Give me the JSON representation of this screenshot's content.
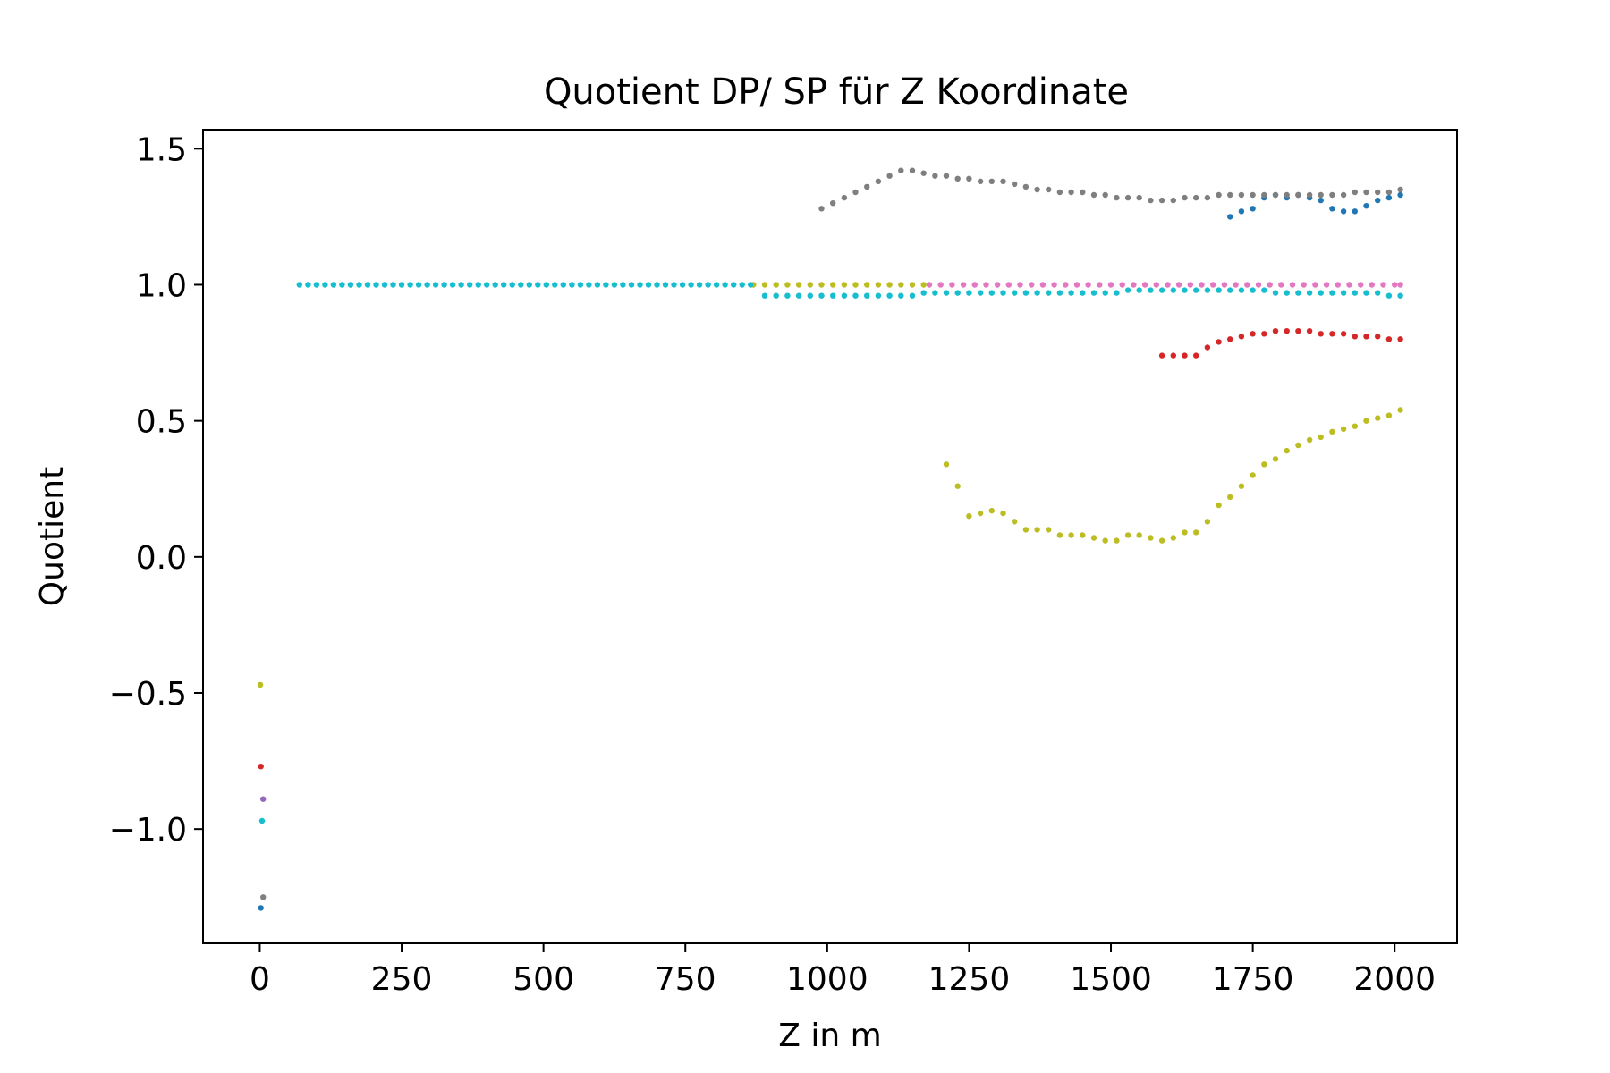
{
  "chart_data": {
    "type": "scatter",
    "title": "Quotient DP/ SP für Z Koordinate",
    "xlabel": "Z in m",
    "ylabel": "Quotient",
    "xlim": [
      -100,
      2110
    ],
    "ylim": [
      -1.42,
      1.57
    ],
    "xticks": [
      0,
      250,
      500,
      750,
      1000,
      1250,
      1500,
      1750,
      2000
    ],
    "xtick_labels": [
      "0",
      "250",
      "500",
      "750",
      "1000",
      "1250",
      "1500",
      "1750",
      "2000"
    ],
    "yticks": [
      -1.0,
      -0.5,
      0.0,
      0.5,
      1.0,
      1.5
    ],
    "ytick_labels": [
      "−1.0",
      "−0.5",
      "0.0",
      "0.5",
      "1.0",
      "1.5"
    ],
    "grid": false,
    "series": [
      {
        "color": "#1f77b4",
        "points": [
          [
            2,
            -1.29
          ],
          [
            1710,
            1.25
          ],
          [
            1730,
            1.27
          ],
          [
            1750,
            1.28
          ],
          [
            1770,
            1.32
          ],
          [
            1790,
            1.33
          ],
          [
            1810,
            1.32
          ],
          [
            1830,
            1.33
          ],
          [
            1850,
            1.32
          ],
          [
            1870,
            1.31
          ],
          [
            1890,
            1.28
          ],
          [
            1910,
            1.27
          ],
          [
            1930,
            1.27
          ],
          [
            1950,
            1.29
          ],
          [
            1970,
            1.31
          ],
          [
            1990,
            1.32
          ],
          [
            2010,
            1.33
          ]
        ]
      },
      {
        "color": "#d62728",
        "points": [
          [
            2,
            -0.77
          ],
          [
            1590,
            0.74
          ],
          [
            1610,
            0.74
          ],
          [
            1630,
            0.74
          ],
          [
            1650,
            0.74
          ],
          [
            1670,
            0.77
          ],
          [
            1690,
            0.79
          ],
          [
            1710,
            0.8
          ],
          [
            1730,
            0.81
          ],
          [
            1750,
            0.82
          ],
          [
            1770,
            0.82
          ],
          [
            1790,
            0.83
          ],
          [
            1810,
            0.83
          ],
          [
            1830,
            0.83
          ],
          [
            1850,
            0.83
          ],
          [
            1870,
            0.82
          ],
          [
            1890,
            0.82
          ],
          [
            1910,
            0.82
          ],
          [
            1930,
            0.81
          ],
          [
            1950,
            0.81
          ],
          [
            1970,
            0.81
          ],
          [
            1990,
            0.8
          ],
          [
            2010,
            0.8
          ]
        ]
      },
      {
        "color": "#9467bd",
        "points": [
          [
            6,
            -0.89
          ]
        ]
      },
      {
        "color": "#e377c2",
        "points": [
          [
            1180,
            1.0
          ],
          [
            1200,
            1.0
          ],
          [
            1220,
            1.0
          ],
          [
            1240,
            1.0
          ],
          [
            1260,
            1.0
          ],
          [
            1280,
            1.0
          ],
          [
            1300,
            1.0
          ],
          [
            1320,
            1.0
          ],
          [
            1340,
            1.0
          ],
          [
            1360,
            1.0
          ],
          [
            1380,
            1.0
          ],
          [
            1400,
            1.0
          ],
          [
            1420,
            1.0
          ],
          [
            1440,
            1.0
          ],
          [
            1460,
            1.0
          ],
          [
            1480,
            1.0
          ],
          [
            1500,
            1.0
          ],
          [
            1520,
            1.0
          ],
          [
            1540,
            1.0
          ],
          [
            1560,
            1.0
          ],
          [
            1580,
            1.0
          ],
          [
            1600,
            1.0
          ],
          [
            1620,
            1.0
          ],
          [
            1640,
            1.0
          ],
          [
            1660,
            1.0
          ],
          [
            1680,
            1.0
          ],
          [
            1700,
            1.0
          ],
          [
            1720,
            1.0
          ],
          [
            1740,
            1.0
          ],
          [
            1760,
            1.0
          ],
          [
            1780,
            1.0
          ],
          [
            1800,
            1.0
          ],
          [
            1820,
            1.0
          ],
          [
            1840,
            1.0
          ],
          [
            1860,
            1.0
          ],
          [
            1880,
            1.0
          ],
          [
            1900,
            1.0
          ],
          [
            1920,
            1.0
          ],
          [
            1940,
            1.0
          ],
          [
            1960,
            1.0
          ],
          [
            1980,
            1.0
          ],
          [
            2000,
            1.0
          ],
          [
            2010,
            1.0
          ]
        ]
      },
      {
        "color": "#7f7f7f",
        "points": [
          [
            6,
            -1.25
          ],
          [
            990,
            1.28
          ],
          [
            1010,
            1.3
          ],
          [
            1030,
            1.32
          ],
          [
            1050,
            1.34
          ],
          [
            1070,
            1.36
          ],
          [
            1090,
            1.38
          ],
          [
            1110,
            1.4
          ],
          [
            1130,
            1.42
          ],
          [
            1150,
            1.42
          ],
          [
            1170,
            1.41
          ],
          [
            1190,
            1.4
          ],
          [
            1210,
            1.4
          ],
          [
            1230,
            1.39
          ],
          [
            1250,
            1.39
          ],
          [
            1270,
            1.38
          ],
          [
            1290,
            1.38
          ],
          [
            1310,
            1.38
          ],
          [
            1330,
            1.37
          ],
          [
            1350,
            1.36
          ],
          [
            1370,
            1.35
          ],
          [
            1390,
            1.35
          ],
          [
            1410,
            1.34
          ],
          [
            1430,
            1.34
          ],
          [
            1450,
            1.34
          ],
          [
            1470,
            1.33
          ],
          [
            1490,
            1.33
          ],
          [
            1510,
            1.32
          ],
          [
            1530,
            1.32
          ],
          [
            1550,
            1.32
          ],
          [
            1570,
            1.31
          ],
          [
            1590,
            1.31
          ],
          [
            1610,
            1.31
          ],
          [
            1630,
            1.32
          ],
          [
            1650,
            1.32
          ],
          [
            1670,
            1.32
          ],
          [
            1690,
            1.33
          ],
          [
            1710,
            1.33
          ],
          [
            1730,
            1.33
          ],
          [
            1750,
            1.33
          ],
          [
            1770,
            1.33
          ],
          [
            1790,
            1.33
          ],
          [
            1810,
            1.33
          ],
          [
            1830,
            1.33
          ],
          [
            1850,
            1.33
          ],
          [
            1870,
            1.33
          ],
          [
            1890,
            1.33
          ],
          [
            1910,
            1.33
          ],
          [
            1930,
            1.34
          ],
          [
            1950,
            1.34
          ],
          [
            1970,
            1.34
          ],
          [
            1990,
            1.34
          ],
          [
            2010,
            1.35
          ]
        ]
      },
      {
        "color": "#bcbd22",
        "points": [
          [
            1,
            -0.47
          ],
          [
            870,
            1.0
          ],
          [
            890,
            1.0
          ],
          [
            910,
            1.0
          ],
          [
            930,
            1.0
          ],
          [
            950,
            1.0
          ],
          [
            970,
            1.0
          ],
          [
            990,
            1.0
          ],
          [
            1010,
            1.0
          ],
          [
            1030,
            1.0
          ],
          [
            1050,
            1.0
          ],
          [
            1070,
            1.0
          ],
          [
            1090,
            1.0
          ],
          [
            1110,
            1.0
          ],
          [
            1130,
            1.0
          ],
          [
            1150,
            1.0
          ],
          [
            1170,
            1.0
          ],
          [
            1210,
            0.34
          ],
          [
            1230,
            0.26
          ],
          [
            1250,
            0.15
          ],
          [
            1270,
            0.16
          ],
          [
            1290,
            0.17
          ],
          [
            1310,
            0.16
          ],
          [
            1330,
            0.13
          ],
          [
            1350,
            0.1
          ],
          [
            1370,
            0.1
          ],
          [
            1390,
            0.1
          ],
          [
            1410,
            0.08
          ],
          [
            1430,
            0.08
          ],
          [
            1450,
            0.08
          ],
          [
            1470,
            0.07
          ],
          [
            1490,
            0.06
          ],
          [
            1510,
            0.06
          ],
          [
            1530,
            0.08
          ],
          [
            1550,
            0.08
          ],
          [
            1570,
            0.07
          ],
          [
            1590,
            0.06
          ],
          [
            1610,
            0.07
          ],
          [
            1630,
            0.09
          ],
          [
            1650,
            0.09
          ],
          [
            1670,
            0.13
          ],
          [
            1690,
            0.19
          ],
          [
            1710,
            0.22
          ],
          [
            1730,
            0.26
          ],
          [
            1750,
            0.3
          ],
          [
            1770,
            0.34
          ],
          [
            1790,
            0.36
          ],
          [
            1810,
            0.39
          ],
          [
            1830,
            0.41
          ],
          [
            1850,
            0.43
          ],
          [
            1870,
            0.44
          ],
          [
            1890,
            0.46
          ],
          [
            1910,
            0.47
          ],
          [
            1930,
            0.48
          ],
          [
            1950,
            0.5
          ],
          [
            1970,
            0.51
          ],
          [
            1990,
            0.52
          ],
          [
            2010,
            0.54
          ]
        ]
      },
      {
        "color": "#17becf",
        "points": [
          [
            4,
            -0.97
          ],
          [
            70,
            1.0
          ],
          [
            85,
            1.0
          ],
          [
            100,
            1.0
          ],
          [
            115,
            1.0
          ],
          [
            130,
            1.0
          ],
          [
            145,
            1.0
          ],
          [
            160,
            1.0
          ],
          [
            175,
            1.0
          ],
          [
            190,
            1.0
          ],
          [
            205,
            1.0
          ],
          [
            220,
            1.0
          ],
          [
            235,
            1.0
          ],
          [
            250,
            1.0
          ],
          [
            265,
            1.0
          ],
          [
            280,
            1.0
          ],
          [
            295,
            1.0
          ],
          [
            310,
            1.0
          ],
          [
            325,
            1.0
          ],
          [
            340,
            1.0
          ],
          [
            355,
            1.0
          ],
          [
            370,
            1.0
          ],
          [
            385,
            1.0
          ],
          [
            400,
            1.0
          ],
          [
            415,
            1.0
          ],
          [
            430,
            1.0
          ],
          [
            445,
            1.0
          ],
          [
            460,
            1.0
          ],
          [
            475,
            1.0
          ],
          [
            490,
            1.0
          ],
          [
            505,
            1.0
          ],
          [
            520,
            1.0
          ],
          [
            535,
            1.0
          ],
          [
            550,
            1.0
          ],
          [
            565,
            1.0
          ],
          [
            580,
            1.0
          ],
          [
            595,
            1.0
          ],
          [
            610,
            1.0
          ],
          [
            625,
            1.0
          ],
          [
            640,
            1.0
          ],
          [
            655,
            1.0
          ],
          [
            670,
            1.0
          ],
          [
            685,
            1.0
          ],
          [
            700,
            1.0
          ],
          [
            715,
            1.0
          ],
          [
            730,
            1.0
          ],
          [
            745,
            1.0
          ],
          [
            760,
            1.0
          ],
          [
            775,
            1.0
          ],
          [
            790,
            1.0
          ],
          [
            805,
            1.0
          ],
          [
            820,
            1.0
          ],
          [
            835,
            1.0
          ],
          [
            850,
            1.0
          ],
          [
            865,
            1.0
          ],
          [
            890,
            0.96
          ],
          [
            910,
            0.96
          ],
          [
            930,
            0.96
          ],
          [
            950,
            0.96
          ],
          [
            970,
            0.96
          ],
          [
            990,
            0.96
          ],
          [
            1010,
            0.96
          ],
          [
            1030,
            0.96
          ],
          [
            1050,
            0.96
          ],
          [
            1070,
            0.96
          ],
          [
            1090,
            0.96
          ],
          [
            1110,
            0.96
          ],
          [
            1130,
            0.96
          ],
          [
            1150,
            0.96
          ],
          [
            1170,
            0.97
          ],
          [
            1190,
            0.97
          ],
          [
            1210,
            0.97
          ],
          [
            1230,
            0.97
          ],
          [
            1250,
            0.97
          ],
          [
            1270,
            0.97
          ],
          [
            1290,
            0.97
          ],
          [
            1310,
            0.97
          ],
          [
            1330,
            0.97
          ],
          [
            1350,
            0.97
          ],
          [
            1370,
            0.97
          ],
          [
            1390,
            0.97
          ],
          [
            1410,
            0.97
          ],
          [
            1430,
            0.97
          ],
          [
            1450,
            0.97
          ],
          [
            1470,
            0.97
          ],
          [
            1490,
            0.97
          ],
          [
            1510,
            0.97
          ],
          [
            1530,
            0.98
          ],
          [
            1550,
            0.98
          ],
          [
            1570,
            0.98
          ],
          [
            1590,
            0.98
          ],
          [
            1610,
            0.98
          ],
          [
            1630,
            0.98
          ],
          [
            1650,
            0.98
          ],
          [
            1670,
            0.98
          ],
          [
            1690,
            0.98
          ],
          [
            1710,
            0.98
          ],
          [
            1730,
            0.98
          ],
          [
            1750,
            0.98
          ],
          [
            1770,
            0.98
          ],
          [
            1790,
            0.97
          ],
          [
            1810,
            0.97
          ],
          [
            1830,
            0.97
          ],
          [
            1850,
            0.97
          ],
          [
            1870,
            0.97
          ],
          [
            1890,
            0.97
          ],
          [
            1910,
            0.97
          ],
          [
            1930,
            0.97
          ],
          [
            1950,
            0.97
          ],
          [
            1970,
            0.97
          ],
          [
            1990,
            0.96
          ],
          [
            2010,
            0.96
          ]
        ]
      }
    ]
  }
}
